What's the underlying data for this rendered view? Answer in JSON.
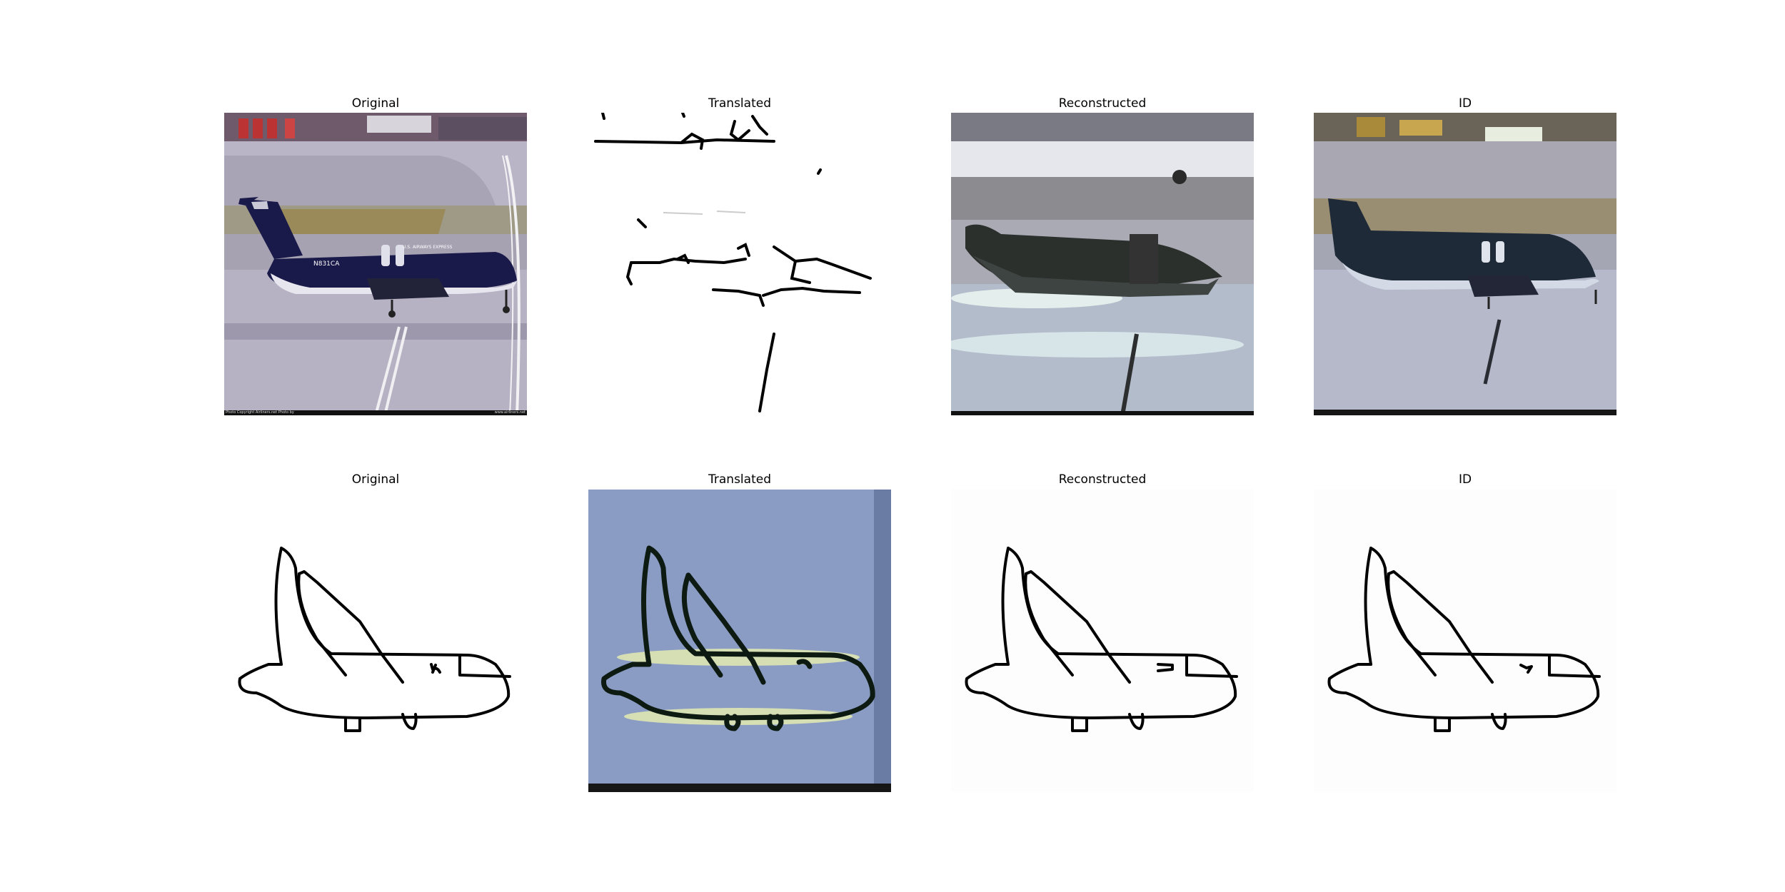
{
  "figure": {
    "rows": [
      {
        "panels": [
          {
            "title": "Original"
          },
          {
            "title": "Translated"
          },
          {
            "title": "Reconstructed"
          },
          {
            "title": "ID"
          }
        ]
      },
      {
        "panels": [
          {
            "title": "Original"
          },
          {
            "title": "Translated"
          },
          {
            "title": "Reconstructed"
          },
          {
            "title": "ID"
          }
        ]
      }
    ],
    "photo_text": {
      "registration": "N831CA",
      "airline": "U.S. AIRWAYS EXPRESS",
      "copyright_left": "Photo Copyright Airliners.net Photo by",
      "copyright_right": "www.airliners.net"
    },
    "colors": {
      "fuselage": "#1a1a4a",
      "tarmac": "#b9b4c6",
      "sketch_background": "#8a9cc4",
      "stroke": "#000000"
    }
  }
}
